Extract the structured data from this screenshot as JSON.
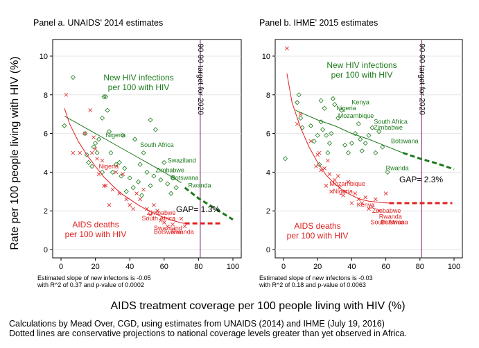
{
  "figure": {
    "ylabel": "Rate per 100 people living with HIV (%)",
    "xlabel": "AIDS treatment coverage per 100 people living with HIV (%)",
    "notes": [
      "Calculations by Mead Over, CGD, using estimates from UNAIDS (2014) and IHME (July 19, 2016)",
      "Dotted lines are conservative projections to national coverage levels greater than yet observed in Africa."
    ]
  },
  "colors": {
    "infections": "#1a7a1a",
    "deaths": "#e02020",
    "target_line": "#7a1a6a",
    "axis": "#000000",
    "grid": "#e6e6e6"
  },
  "chart_data": [
    {
      "type": "scatter",
      "title": "Panel a.  UNAIDS' 2014 estimates",
      "xlim": [
        0,
        100
      ],
      "ylim": [
        0,
        10.5
      ],
      "xticks": [
        0,
        20,
        40,
        60,
        80,
        100
      ],
      "yticks": [
        0,
        2,
        4,
        6,
        8,
        10
      ],
      "grid": true,
      "target_line": {
        "x": 81,
        "label": "90-90 target for 2020"
      },
      "infections": {
        "label_line1": "New HIV infections",
        "label_line2": "per 100 with HIV",
        "points": [
          [
            2,
            6.4
          ],
          [
            7,
            8.9
          ],
          [
            14,
            6.0
          ],
          [
            15,
            4.9
          ],
          [
            16,
            4.5
          ],
          [
            18,
            4.3
          ],
          [
            19,
            5.3
          ],
          [
            20,
            5.5
          ],
          [
            21,
            5.0
          ],
          [
            22,
            5.7
          ],
          [
            24,
            4.0
          ],
          [
            24,
            6.8
          ],
          [
            25,
            7.9
          ],
          [
            26,
            7.9
          ],
          [
            27,
            7.2
          ],
          [
            28,
            6.1
          ],
          [
            29,
            5.0
          ],
          [
            30,
            4.0
          ],
          [
            32,
            4.4
          ],
          [
            34,
            4.5
          ],
          [
            35,
            3.8
          ],
          [
            36,
            5.9
          ],
          [
            37,
            4.2
          ],
          [
            38,
            3.0
          ],
          [
            40,
            3.7
          ],
          [
            42,
            3.2
          ],
          [
            43,
            5.7
          ],
          [
            45,
            3.5
          ],
          [
            46,
            4.4
          ],
          [
            47,
            2.8
          ],
          [
            48,
            5.0
          ],
          [
            50,
            4.0
          ],
          [
            52,
            3.3
          ],
          [
            52,
            6.7
          ],
          [
            54,
            3.8
          ],
          [
            55,
            6.2
          ],
          [
            58,
            3.6
          ],
          [
            60,
            4.5
          ],
          [
            62,
            3.4
          ],
          [
            64,
            2.9
          ],
          [
            65,
            3.7
          ],
          [
            67,
            3.2
          ]
        ],
        "labeled": [
          {
            "name": "Nigeria",
            "x": 26,
            "y": 5.8
          },
          {
            "name": "South Africa",
            "x": 46,
            "y": 5.3
          },
          {
            "name": "Swaziland",
            "x": 62,
            "y": 4.5
          },
          {
            "name": "Zimbabwe",
            "x": 55,
            "y": 4.0
          },
          {
            "name": "Botswana",
            "x": 64,
            "y": 3.6
          },
          {
            "name": "Rwanda",
            "x": 74,
            "y": 3.2
          }
        ],
        "fit": [
          [
            2,
            6.9
          ],
          [
            10,
            6.5
          ],
          [
            20,
            6.0
          ],
          [
            30,
            5.5
          ],
          [
            40,
            5.0
          ],
          [
            50,
            4.5
          ],
          [
            60,
            4.0
          ],
          [
            70,
            3.45
          ]
        ],
        "projection": [
          [
            72,
            3.2
          ],
          [
            80,
            2.65
          ],
          [
            90,
            2.1
          ],
          [
            100,
            1.55
          ]
        ]
      },
      "deaths": {
        "label_line1": "AIDS deaths",
        "label_line2": "per 100 with HIV",
        "points": [
          [
            3,
            8.0
          ],
          [
            7,
            5.0
          ],
          [
            11,
            5.0
          ],
          [
            14,
            6.0
          ],
          [
            17,
            7.2
          ],
          [
            18,
            5.0
          ],
          [
            19,
            5.8
          ],
          [
            20,
            5.2
          ],
          [
            21,
            4.7
          ],
          [
            22,
            3.9
          ],
          [
            24,
            4.6
          ],
          [
            25,
            3.3
          ],
          [
            26,
            3.3
          ],
          [
            28,
            2.3
          ],
          [
            30,
            3.1
          ],
          [
            32,
            4.0
          ],
          [
            34,
            2.9
          ],
          [
            36,
            3.9
          ],
          [
            38,
            2.6
          ],
          [
            40,
            2.3
          ],
          [
            42,
            2.1
          ],
          [
            44,
            2.9
          ],
          [
            46,
            2.6
          ],
          [
            48,
            3.1
          ],
          [
            50,
            2.1
          ],
          [
            52,
            1.8
          ],
          [
            54,
            2.3
          ],
          [
            56,
            2.0
          ],
          [
            58,
            1.5
          ],
          [
            60,
            1.4
          ],
          [
            62,
            1.2
          ],
          [
            65,
            1.3
          ],
          [
            70,
            1.6
          ],
          [
            72,
            1.2
          ]
        ],
        "labeled": [
          {
            "name": "Nigeria",
            "x": 22,
            "y": 4.2
          },
          {
            "name": "Zimbabwe",
            "x": 50,
            "y": 1.8
          },
          {
            "name": "South Africa",
            "x": 47,
            "y": 1.5
          },
          {
            "name": "Swaziland",
            "x": 54,
            "y": 1.0
          },
          {
            "name": "Botswana",
            "x": 54,
            "y": 0.8
          },
          {
            "name": "Rwanda",
            "x": 64,
            "y": 0.8
          }
        ],
        "fit": [
          [
            2,
            7.3
          ],
          [
            5,
            6.5
          ],
          [
            10,
            5.6
          ],
          [
            15,
            4.9
          ],
          [
            20,
            4.3
          ],
          [
            25,
            3.75
          ],
          [
            30,
            3.3
          ],
          [
            35,
            2.9
          ],
          [
            40,
            2.6
          ],
          [
            45,
            2.3
          ],
          [
            50,
            2.05
          ],
          [
            55,
            1.85
          ],
          [
            60,
            1.65
          ],
          [
            65,
            1.5
          ],
          [
            70,
            1.38
          ],
          [
            72,
            1.35
          ]
        ],
        "projection": [
          [
            72,
            1.35
          ],
          [
            93,
            1.35
          ]
        ]
      },
      "gap_label": "GAP= 1.3%",
      "footnote_line1": "Estimated slope of new infectons is -0.05",
      "footnote_line2": "with R^2 of 0.37 and p-value of 0.0002"
    },
    {
      "type": "scatter",
      "title": "Panel b.  IHME' 2015 estimates",
      "xlim": [
        0,
        100
      ],
      "ylim": [
        0,
        10.5
      ],
      "xticks": [
        0,
        20,
        40,
        60,
        80,
        100
      ],
      "yticks": [
        0,
        2,
        4,
        6,
        8,
        10
      ],
      "grid": true,
      "target_line": {
        "x": 81,
        "label": "90-90 target for 2020"
      },
      "infections": {
        "label_line1": "New HIV infections",
        "label_line2": "per 100 with HIV",
        "points": [
          [
            1,
            4.7
          ],
          [
            8,
            7.6
          ],
          [
            9,
            8.0
          ],
          [
            10,
            6.8
          ],
          [
            11,
            6.3
          ],
          [
            16,
            6.4
          ],
          [
            18,
            5.6
          ],
          [
            20,
            5.9
          ],
          [
            21,
            4.4
          ],
          [
            22,
            7.7
          ],
          [
            22,
            6.6
          ],
          [
            23,
            6.2
          ],
          [
            24,
            7.3
          ],
          [
            25,
            5.9
          ],
          [
            26,
            5.0
          ],
          [
            27,
            5.5
          ],
          [
            28,
            6.0
          ],
          [
            29,
            7.8
          ],
          [
            30,
            7.5
          ],
          [
            32,
            6.8
          ],
          [
            34,
            7.2
          ],
          [
            36,
            5.4
          ],
          [
            38,
            5.0
          ],
          [
            40,
            5.5
          ],
          [
            42,
            6.0
          ],
          [
            44,
            6.5
          ],
          [
            45,
            5.7
          ],
          [
            46,
            5.1
          ],
          [
            48,
            5.5
          ],
          [
            50,
            5.9
          ],
          [
            52,
            6.3
          ],
          [
            54,
            5.0
          ],
          [
            56,
            6.1
          ],
          [
            58,
            5.3
          ],
          [
            61,
            4.0
          ]
        ],
        "labeled": [
          {
            "name": "Kenya",
            "x": 40,
            "y": 7.5
          },
          {
            "name": "Nigeria",
            "x": 31,
            "y": 7.2
          },
          {
            "name": "Mozambique",
            "x": 32,
            "y": 6.8
          },
          {
            "name": "South Africa",
            "x": 53,
            "y": 6.5
          },
          {
            "name": "Zimbabwe",
            "x": 53,
            "y": 6.2
          },
          {
            "name": "Botswana",
            "x": 63,
            "y": 5.5
          },
          {
            "name": "Rwanda",
            "x": 60,
            "y": 4.1
          }
        ],
        "fit": [
          [
            7,
            7.2
          ],
          [
            20,
            6.7
          ],
          [
            30,
            6.4
          ],
          [
            40,
            6.0
          ],
          [
            50,
            5.7
          ],
          [
            60,
            5.35
          ],
          [
            70,
            5.0
          ]
        ],
        "projection": [
          [
            70,
            5.0
          ],
          [
            80,
            4.7
          ],
          [
            90,
            4.45
          ],
          [
            100,
            4.15
          ]
        ]
      },
      "deaths": {
        "label_line1": "AIDS deaths",
        "label_line2": "per 100 with HIV",
        "points": [
          [
            2,
            10.4
          ],
          [
            8,
            6.5
          ],
          [
            10,
            7.0
          ],
          [
            16,
            5.6
          ],
          [
            19,
            4.3
          ],
          [
            20,
            4.9
          ],
          [
            21,
            5.0
          ],
          [
            22,
            4.1
          ],
          [
            24,
            4.2
          ],
          [
            25,
            3.3
          ],
          [
            26,
            4.6
          ],
          [
            27,
            3.9
          ],
          [
            28,
            3.0
          ],
          [
            30,
            3.6
          ],
          [
            32,
            3.8
          ],
          [
            33,
            3.2
          ],
          [
            35,
            2.8
          ],
          [
            36,
            3.0
          ],
          [
            38,
            3.5
          ],
          [
            40,
            2.4
          ],
          [
            42,
            2.9
          ],
          [
            44,
            2.6
          ],
          [
            46,
            2.4
          ],
          [
            48,
            2.7
          ],
          [
            50,
            2.1
          ],
          [
            52,
            2.2
          ],
          [
            54,
            2.6
          ],
          [
            56,
            2.0
          ],
          [
            60,
            2.9
          ]
        ],
        "labeled": [
          {
            "name": "Mozambique",
            "x": 27,
            "y": 3.3
          },
          {
            "name": "Nigeria",
            "x": 29,
            "y": 2.9
          },
          {
            "name": "Kenya",
            "x": 43,
            "y": 2.2
          },
          {
            "name": "Zimbabwe",
            "x": 52,
            "y": 1.9
          },
          {
            "name": "Rwanda",
            "x": 56,
            "y": 1.6
          },
          {
            "name": "South Africa",
            "x": 51,
            "y": 1.3
          },
          {
            "name": "Botswana",
            "x": 57,
            "y": 1.3
          }
        ],
        "fit": [
          [
            2,
            9.1
          ],
          [
            5,
            7.6
          ],
          [
            10,
            6.3
          ],
          [
            15,
            5.3
          ],
          [
            20,
            4.5
          ],
          [
            25,
            3.85
          ],
          [
            30,
            3.4
          ],
          [
            35,
            3.05
          ],
          [
            40,
            2.8
          ],
          [
            45,
            2.6
          ],
          [
            50,
            2.5
          ],
          [
            55,
            2.45
          ],
          [
            62,
            2.4
          ]
        ],
        "projection": [
          [
            62,
            2.4
          ],
          [
            99,
            2.4
          ]
        ]
      },
      "gap_label": "GAP= 2.3%",
      "footnote_line1": "Estimated slope of new infectons is -0.03",
      "footnote_line2": "with R^2 of 0.18 and p-value of 0.0063"
    }
  ]
}
